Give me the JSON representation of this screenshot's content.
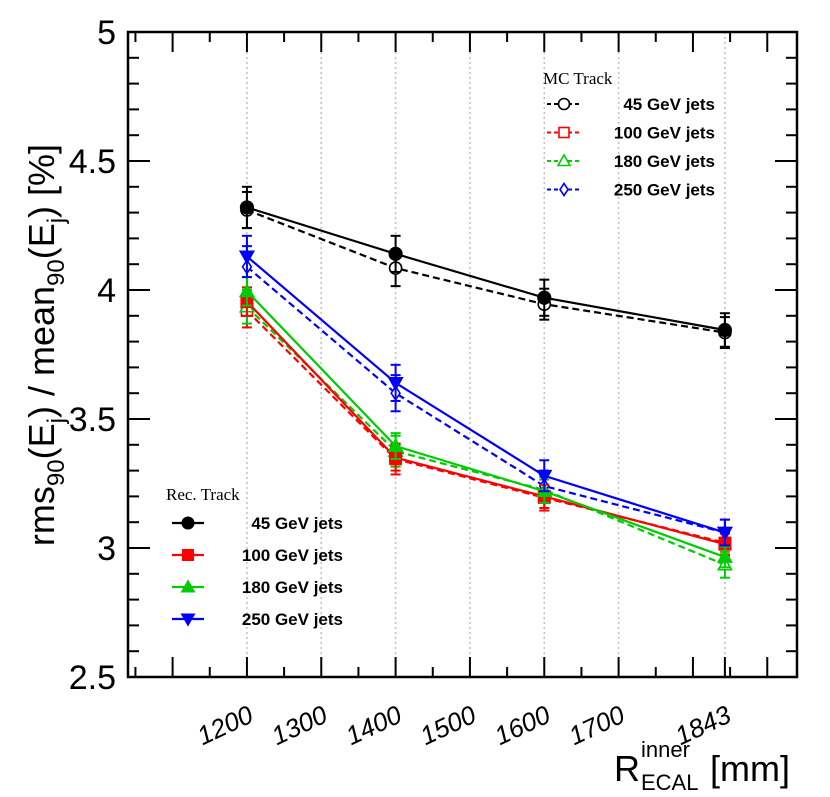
{
  "chart_data": {
    "type": "line",
    "ylabel_parts": [
      "rms",
      "90",
      "(E",
      "j",
      ") / mean",
      "90",
      "(E",
      "j",
      ") [%]"
    ],
    "xlabel_parts": [
      "R",
      "inner",
      "ECAL",
      " [mm]"
    ],
    "x_ticks": [
      1200,
      1300,
      1400,
      1500,
      1600,
      1700,
      1843
    ],
    "y_ticks": [
      "2.5",
      "3",
      "3.5",
      "4",
      "4.5",
      "5"
    ],
    "ylim": [
      2.5,
      5.0
    ],
    "xlim": [
      1040,
      1940
    ],
    "grid_x": [
      1200,
      1300,
      1400,
      1500,
      1600,
      1700,
      1843
    ],
    "x": [
      1200,
      1400,
      1600,
      1843
    ],
    "legend_rec_title": "Rec. Track",
    "legend_mc_title": "MC Track",
    "rec_series": [
      {
        "name": "45 GeV jets",
        "color": "#000000",
        "marker": "circle",
        "values": [
          4.32,
          4.14,
          3.97,
          3.845
        ],
        "errors": [
          0.08,
          0.07,
          0.07,
          0.065
        ]
      },
      {
        "name": "100 GeV jets",
        "color": "#ff0000",
        "marker": "square",
        "values": [
          3.955,
          3.35,
          3.2,
          3.015
        ],
        "errors": [
          0.055,
          0.05,
          0.045,
          0.04
        ]
      },
      {
        "name": "180 GeV jets",
        "color": "#00cc00",
        "marker": "triangle-up",
        "values": [
          3.995,
          3.395,
          3.22,
          2.965
        ],
        "errors": [
          0.055,
          0.05,
          0.045,
          0.04
        ]
      },
      {
        "name": "250 GeV jets",
        "color": "#0000ff",
        "marker": "triangle-down",
        "values": [
          4.13,
          3.64,
          3.28,
          3.06
        ],
        "errors": [
          0.08,
          0.07,
          0.06,
          0.05
        ]
      }
    ],
    "mc_series": [
      {
        "name": "45 GeV jets",
        "color": "#000000",
        "marker": "circle-open",
        "values": [
          4.31,
          4.085,
          3.945,
          3.835
        ],
        "errors": [
          0.07,
          0.07,
          0.06,
          0.06
        ]
      },
      {
        "name": "100 GeV jets",
        "color": "#ff0000",
        "marker": "square-open",
        "values": [
          3.92,
          3.345,
          3.195,
          3.02
        ],
        "errors": [
          0.065,
          0.06,
          0.05,
          0.05
        ]
      },
      {
        "name": "180 GeV jets",
        "color": "#00cc00",
        "marker": "triangle-open",
        "values": [
          3.935,
          3.375,
          3.225,
          2.935
        ],
        "errors": [
          0.065,
          0.06,
          0.05,
          0.05
        ]
      },
      {
        "name": "250 GeV jets",
        "color": "#0000ff",
        "marker": "diamond-open",
        "values": [
          4.09,
          3.6,
          3.24,
          3.06
        ],
        "errors": [
          0.08,
          0.07,
          0.06,
          0.05
        ]
      }
    ]
  }
}
